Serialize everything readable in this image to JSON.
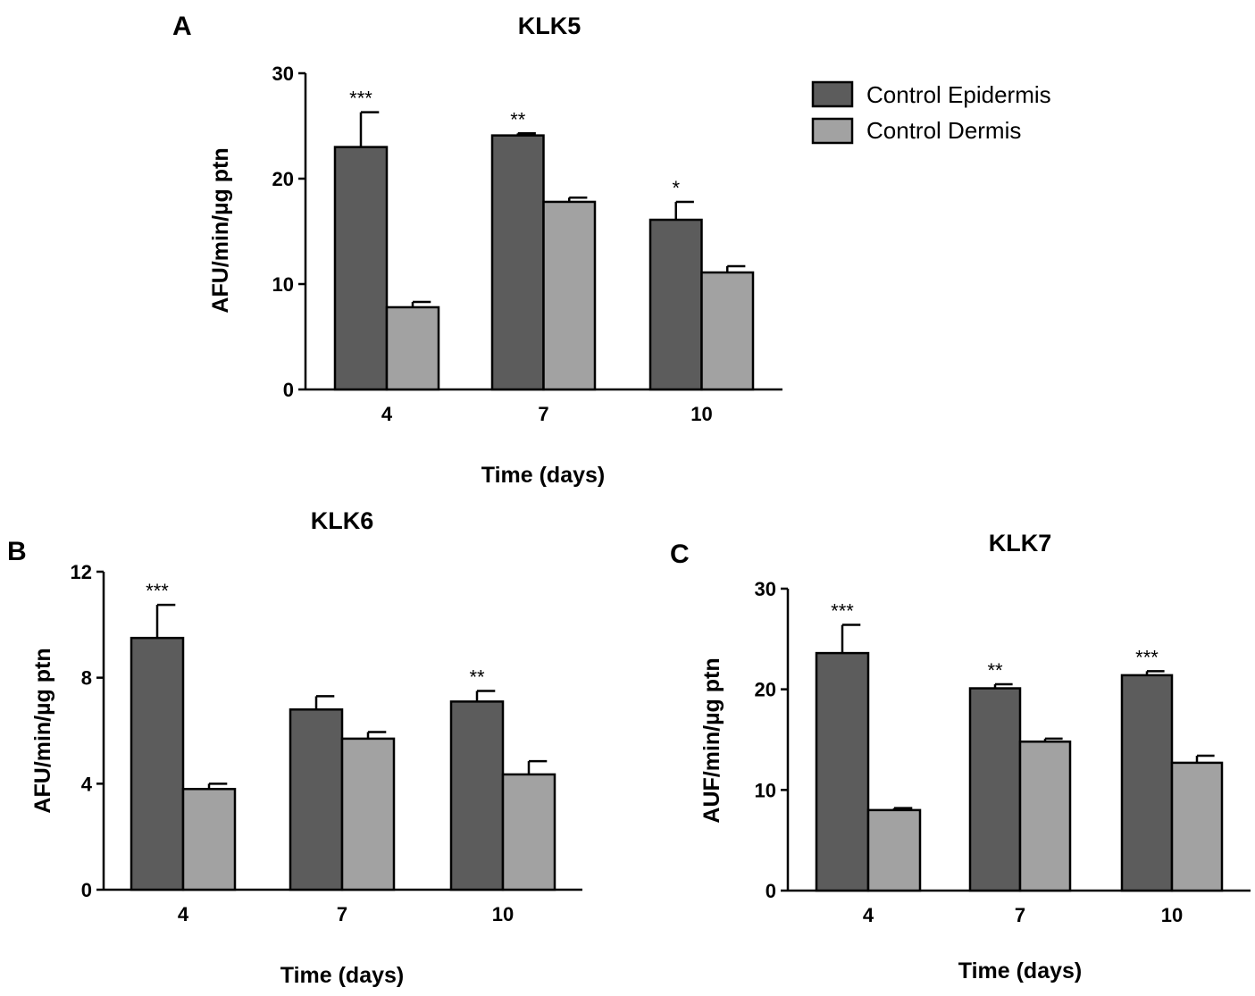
{
  "legend": {
    "entries": [
      {
        "label": "Control Epidermis",
        "color": "#5c5c5c"
      },
      {
        "label": "Control Dermis",
        "color": "#a2a2a2"
      }
    ]
  },
  "chart_data": [
    {
      "type": "bar",
      "panel": "A",
      "title": "KLK5",
      "xlabel": "Time (days)",
      "ylabel": "AFU/min/µg ptn",
      "categories": [
        "4",
        "7",
        "10"
      ],
      "ylim": [
        0,
        30
      ],
      "yticks": [
        0,
        10,
        20,
        30
      ],
      "series": [
        {
          "name": "Control Epidermis",
          "color": "#5c5c5c",
          "values": [
            23.0,
            24.1,
            16.1
          ],
          "errors": [
            3.3,
            0.2,
            1.7
          ],
          "significance": [
            "***",
            "**",
            "*"
          ]
        },
        {
          "name": "Control Dermis",
          "color": "#a2a2a2",
          "values": [
            7.8,
            17.8,
            11.1
          ],
          "errors": [
            0.5,
            0.4,
            0.6
          ],
          "significance": [
            "",
            "",
            ""
          ]
        }
      ]
    },
    {
      "type": "bar",
      "panel": "B",
      "title": "KLK6",
      "xlabel": "Time (days)",
      "ylabel": "AFU/min/µg ptn",
      "categories": [
        "4",
        "7",
        "10"
      ],
      "ylim": [
        0,
        12
      ],
      "yticks": [
        0,
        4,
        8,
        12
      ],
      "series": [
        {
          "name": "Control Epidermis",
          "color": "#5c5c5c",
          "values": [
            9.5,
            6.8,
            7.1
          ],
          "errors": [
            1.25,
            0.5,
            0.4
          ],
          "significance": [
            "***",
            "",
            "**"
          ]
        },
        {
          "name": "Control Dermis",
          "color": "#a2a2a2",
          "values": [
            3.8,
            5.7,
            4.35
          ],
          "errors": [
            0.2,
            0.25,
            0.5
          ],
          "significance": [
            "",
            "",
            ""
          ]
        }
      ]
    },
    {
      "type": "bar",
      "panel": "C",
      "title": "KLK7",
      "xlabel": "Time (days)",
      "ylabel": "AUF/min/µg ptn",
      "categories": [
        "4",
        "7",
        "10"
      ],
      "ylim": [
        0,
        30
      ],
      "yticks": [
        0,
        10,
        20,
        30
      ],
      "series": [
        {
          "name": "Control Epidermis",
          "color": "#5c5c5c",
          "values": [
            23.6,
            20.1,
            21.4
          ],
          "errors": [
            2.8,
            0.4,
            0.4
          ],
          "significance": [
            "***",
            "**",
            "***"
          ]
        },
        {
          "name": "Control Dermis",
          "color": "#a2a2a2",
          "values": [
            8.0,
            14.8,
            12.7
          ],
          "errors": [
            0.2,
            0.3,
            0.7
          ],
          "significance": [
            "",
            "",
            ""
          ]
        }
      ]
    }
  ]
}
